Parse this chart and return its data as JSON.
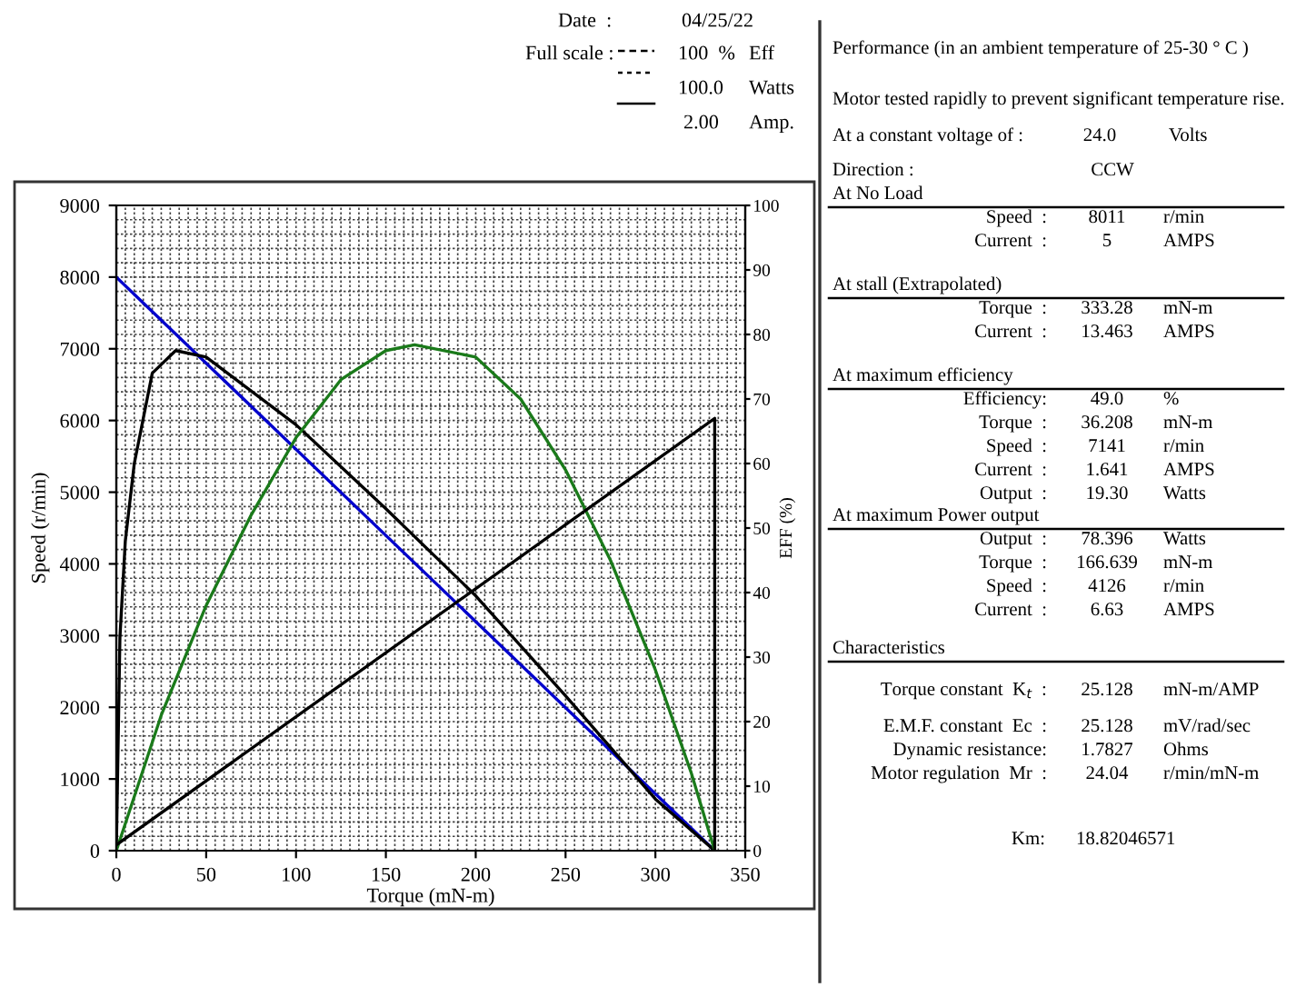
{
  "chart_data": [
    {
      "type": "line",
      "xlabel": "Torque (mN-m)",
      "ylabel": "Speed (r/min)",
      "y2label": "EFF (%)",
      "xlim": [
        0,
        350
      ],
      "xticks": [
        0,
        50,
        100,
        150,
        200,
        250,
        300,
        350
      ],
      "ylim": [
        0,
        9000
      ],
      "yticks": [
        0,
        1000,
        2000,
        3000,
        4000,
        5000,
        6000,
        7000,
        8000,
        9000
      ],
      "y2lim": [
        0,
        100
      ],
      "y2ticks": [
        0,
        10,
        20,
        30,
        40,
        50,
        60,
        70,
        80,
        90,
        100
      ],
      "grid": true,
      "marker": "none",
      "line_style": "solid",
      "series": [
        {
          "color": "#0000cc",
          "x": [
            0,
            333
          ],
          "values": [
            8000,
            0
          ]
        },
        {
          "color": "#000000",
          "axis": "y2",
          "x": [
            0,
            2,
            5,
            10,
            20,
            33,
            50,
            100,
            150,
            200,
            250,
            300,
            333
          ],
          "values": [
            0,
            33,
            48,
            60,
            74,
            77.5,
            76.5,
            66,
            53,
            39.5,
            24,
            8,
            0
          ]
        },
        {
          "color": "#1a7a1a",
          "axis": "y2",
          "x": [
            0,
            25,
            50,
            75,
            100,
            125,
            150,
            166,
            200,
            225,
            250,
            275,
            300,
            320,
            333
          ],
          "values": [
            0,
            21,
            38,
            52,
            64,
            73,
            77.5,
            78.4,
            76.5,
            70,
            59,
            45,
            28,
            12,
            0
          ]
        },
        {
          "color": "#000000",
          "axis": "y2",
          "x": [
            0,
            333,
            333
          ],
          "values": [
            0.9,
            67,
            0
          ]
        }
      ],
      "annotations": [
        "Date  :",
        "04/25/22",
        "Full scale :",
        "100  %",
        "Eff",
        "100.0",
        "Watts",
        "2.00",
        "Amp."
      ]
    },
    {
      "type": "other",
      "annotations": [
        "Performance (in an ambient temperature of 25-30 ° C )",
        "Motor tested rapidly to prevent significant temperature rise.",
        "At a constant voltage of :",
        "24.0",
        "Volts",
        "Direction :",
        "CCW",
        "At No Load",
        "Speed  :",
        "8011",
        "r/min",
        "Current  :",
        "5",
        "AMPS",
        "At stall (Extrapolated)",
        "Torque  :",
        "333.28",
        "mN-m",
        "Current  :",
        "13.463",
        "AMPS",
        "At maximum efficiency",
        "Efficiency:",
        "49.0",
        "%",
        "Torque  :",
        "36.208",
        "mN-m",
        "Speed  :",
        "7141",
        "r/min",
        "Current  :",
        "1.641",
        "AMPS",
        "Output  :",
        "19.30",
        "Watts",
        "At maximum Power output",
        "Output  :",
        "78.396",
        "Watts",
        "Torque  :",
        "166.639",
        "mN-m",
        "Speed  :",
        "4126",
        "r/min",
        "Current  :",
        "6.63",
        "AMPS",
        "Characteristics",
        "Torque constant  K$_{t}$  :",
        "25.128",
        "mN-m/AMP",
        "E.M.F. constant  Ec  :",
        "25.128",
        "mV/rad/sec",
        "Dynamic resistance:",
        "1.7827",
        "Ohms",
        "Motor regulation  Mr  :",
        "24.04",
        "r/min/mN-m",
        "Km:",
        "18.82046571"
      ]
    }
  ]
}
